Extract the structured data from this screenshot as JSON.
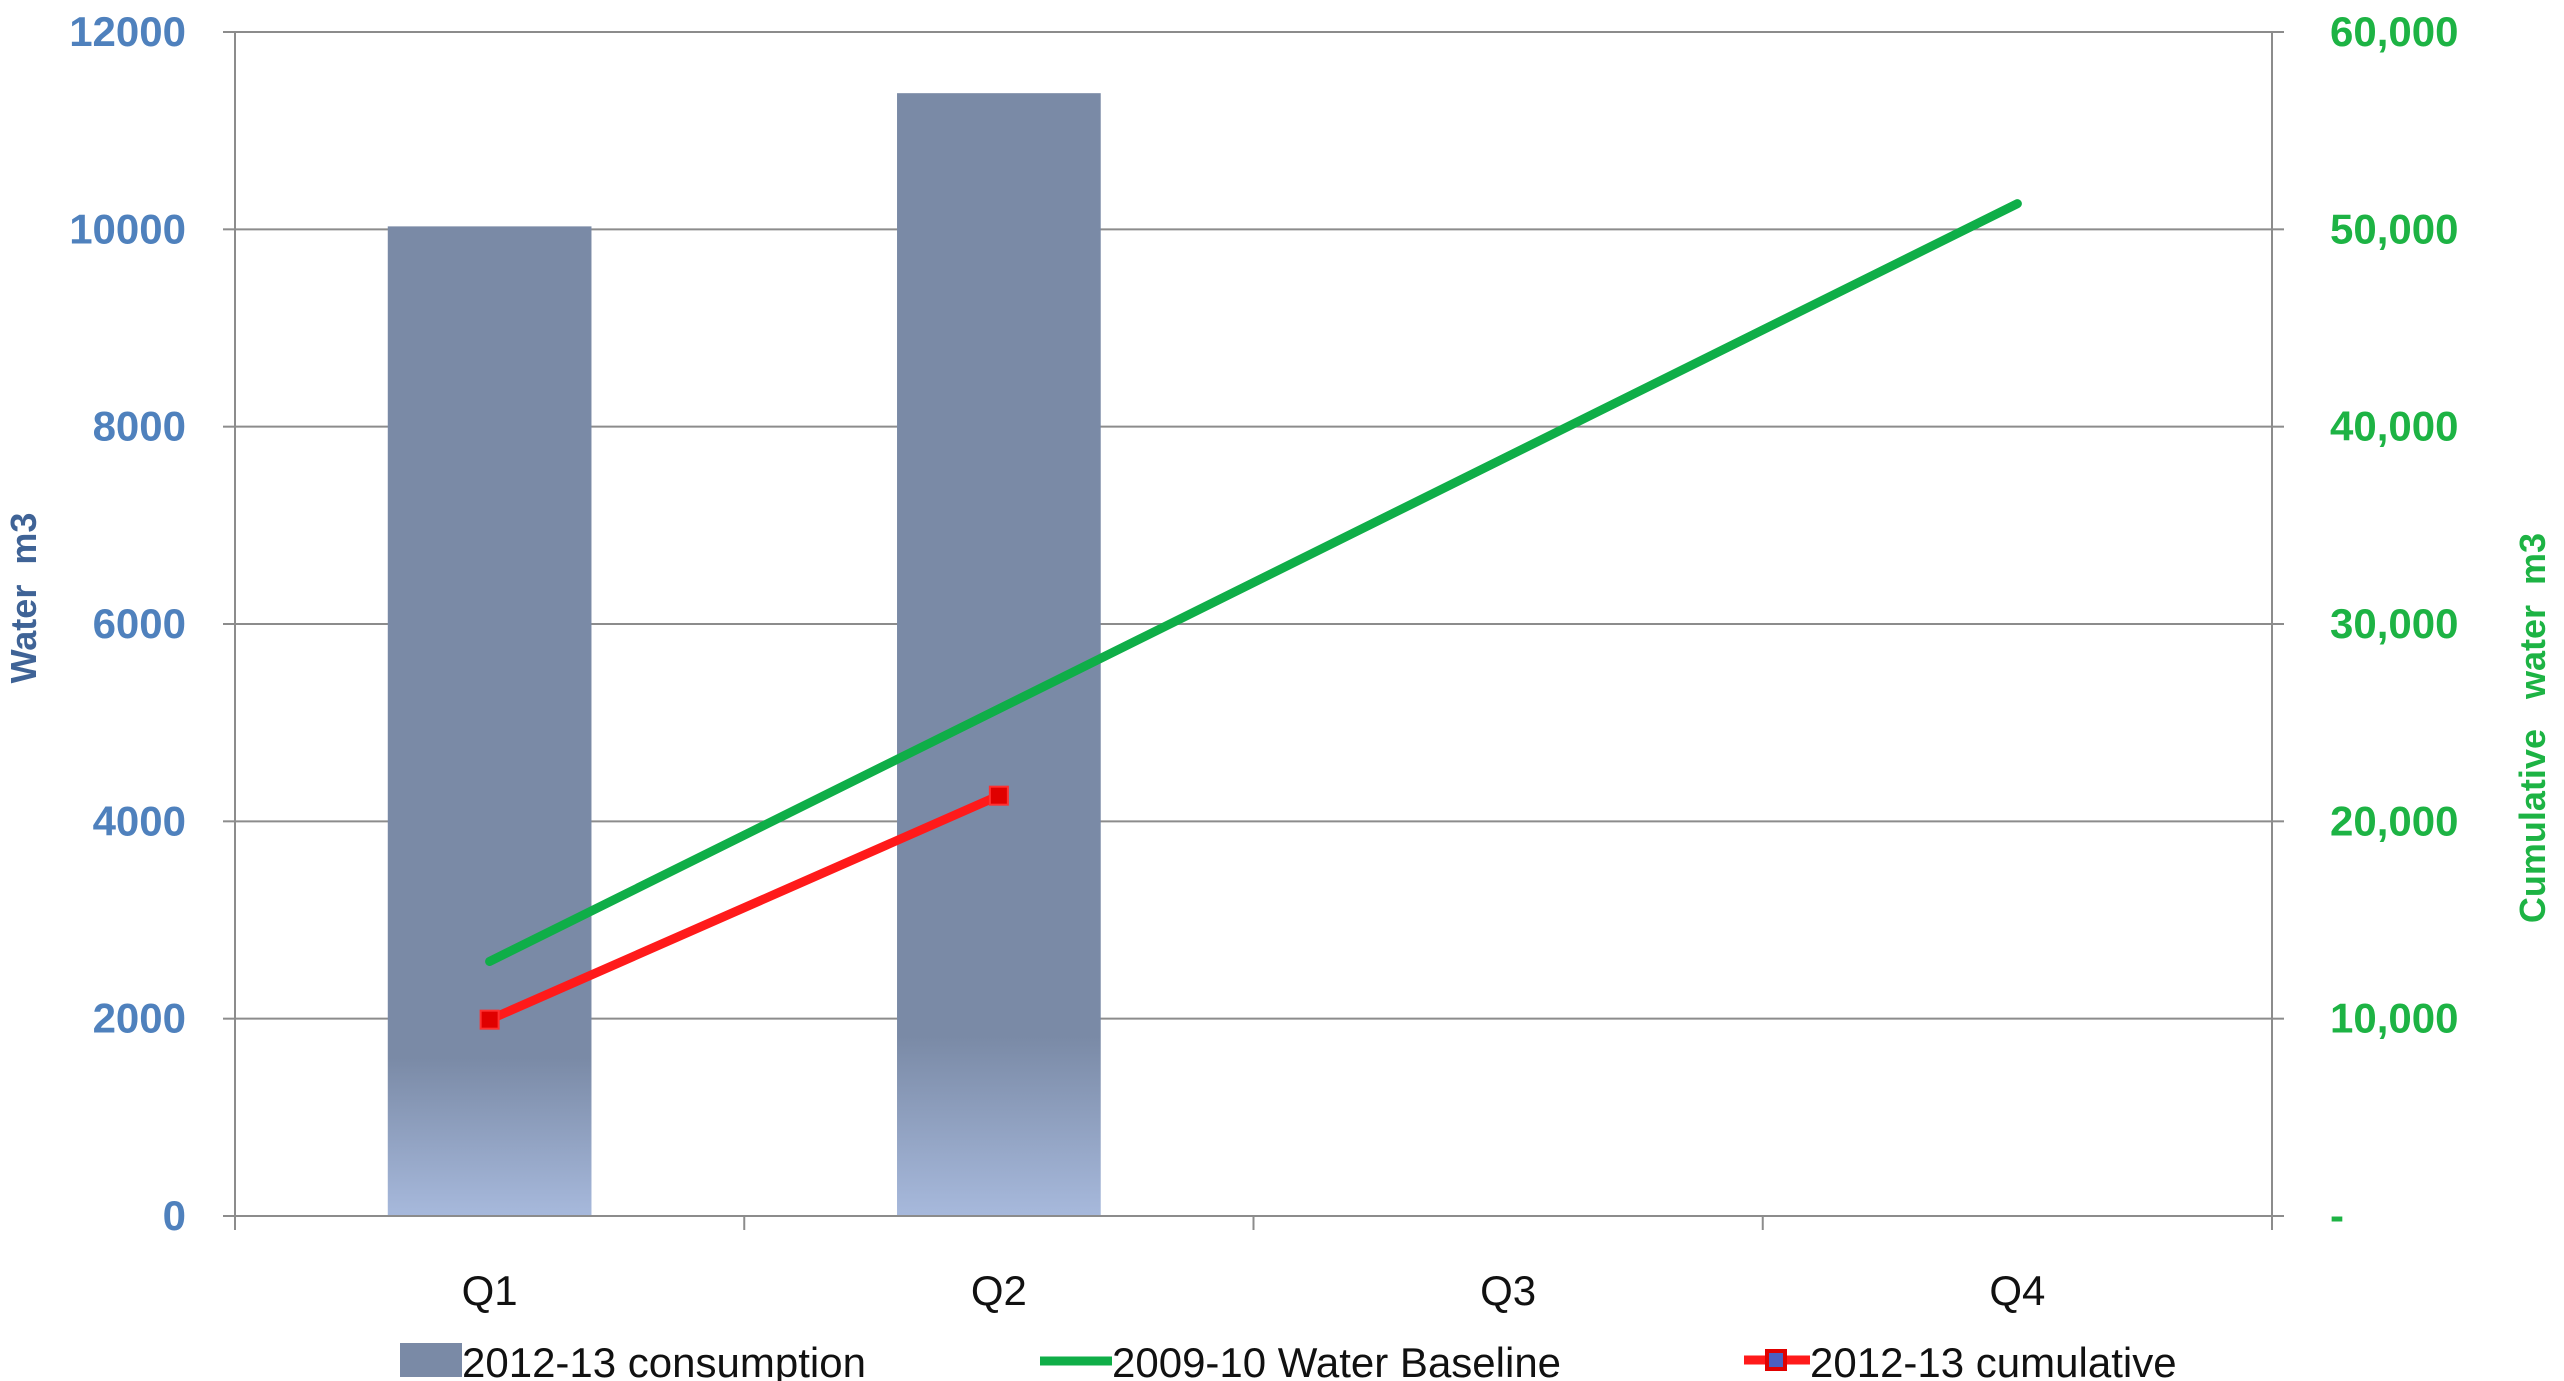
{
  "chart_data": {
    "type": "bar",
    "categories": [
      "Q1",
      "Q2",
      "Q3",
      "Q4"
    ],
    "y_left": {
      "label": "Water  m3",
      "min": 0,
      "max": 12000,
      "step": 2000,
      "tick_labels": [
        "0",
        "2000",
        "4000",
        "6000",
        "8000",
        "10000",
        "12000"
      ]
    },
    "y_right": {
      "label": "Cumulative   water  m3",
      "min": 0,
      "max": 60000,
      "step": 10000,
      "tick_labels": [
        "-",
        "10,000",
        "20,000",
        "30,000",
        "40,000",
        "50,000",
        "60,000"
      ]
    },
    "series": [
      {
        "name": "2012-13 consumption",
        "kind": "bar",
        "axis": "left",
        "values": [
          10030,
          11380,
          null,
          null
        ],
        "color": "#7a8aa6",
        "color_bottom": "#a7b9dc"
      },
      {
        "name": "2009-10 Water Baseline",
        "kind": "line",
        "axis": "right",
        "values": [
          12900,
          null,
          null,
          51300
        ],
        "color": "#0fae48"
      },
      {
        "name": "2012-13 cumulative",
        "kind": "line-markers",
        "axis": "right",
        "values": [
          9950,
          21300,
          null,
          null
        ],
        "color": "#ff1a1a",
        "marker_color": "#e00000"
      }
    ],
    "grid": true,
    "legend": "bottom",
    "colors": {
      "left_axis": "#4f81bd",
      "left_axis_title": "#3f6396",
      "right_axis": "#1db344",
      "grid": "#8c8c8c",
      "legend_marker_blue": "#4a5fc0"
    }
  }
}
